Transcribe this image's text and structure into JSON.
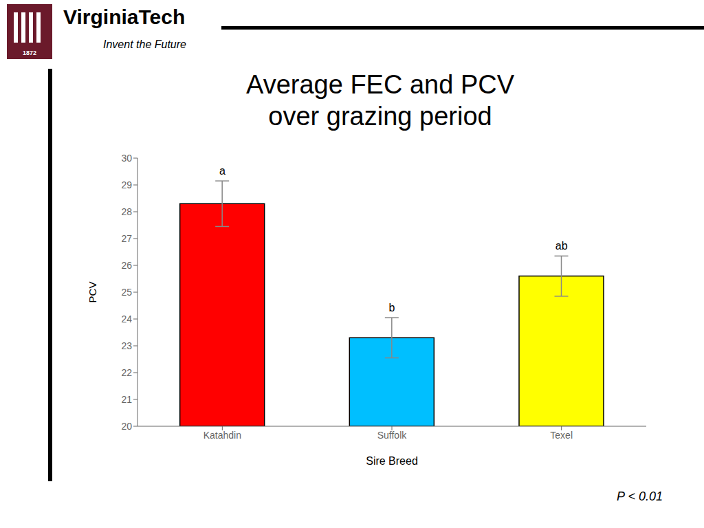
{
  "chart_data": {
    "type": "bar",
    "title": "Average FEC and PCV",
    "subtitle": "over grazing period",
    "categories": [
      "Katahdin",
      "Suffolk",
      "Texel"
    ],
    "values": [
      28.3,
      23.3,
      25.6
    ],
    "errors": [
      0.85,
      0.75,
      0.75
    ],
    "colors": [
      "#FF0000",
      "#00BFFF",
      "#FFFF00"
    ],
    "xlabel": "Sire Breed",
    "ylabel": "PCV",
    "ylim": [
      20,
      30
    ],
    "yticks": [
      20,
      21,
      22,
      23,
      24,
      25,
      26,
      27,
      28,
      29,
      30
    ],
    "grid": false,
    "annotations": [
      {
        "text": "a",
        "x": "Katahdin"
      },
      {
        "text": "b",
        "x": "Suffolk"
      },
      {
        "text": "ab",
        "x": "Texel"
      },
      {
        "text": "P < 0.01"
      },
      {
        "text": "VirginiaTech"
      },
      {
        "text": "Invent the Future"
      },
      {
        "text": "1872"
      }
    ]
  }
}
